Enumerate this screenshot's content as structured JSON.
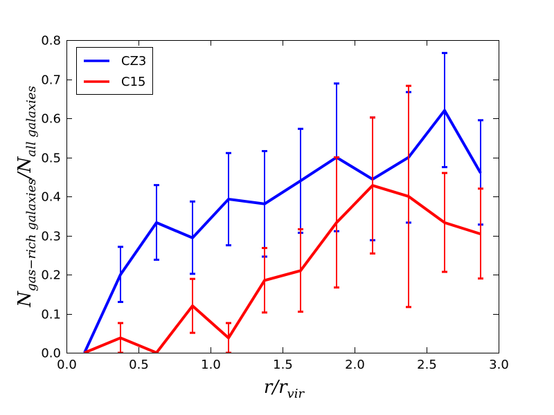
{
  "chart_data": {
    "type": "line",
    "title": "",
    "xlabel": {
      "main": "r/r",
      "sub": "vir"
    },
    "ylabel": {
      "n1": "N",
      "sub1": "gas−rich galaxies",
      "sep": "/",
      "n2": "N",
      "sub2": "all galaxies"
    },
    "xlim": [
      0.0,
      3.0
    ],
    "ylim": [
      0.0,
      0.8
    ],
    "xticks": [
      "0.0",
      "0.5",
      "1.0",
      "1.5",
      "2.0",
      "2.5",
      "3.0"
    ],
    "yticks": [
      "0.0",
      "0.1",
      "0.2",
      "0.3",
      "0.4",
      "0.5",
      "0.6",
      "0.7",
      "0.8"
    ],
    "legend_position": "top-left",
    "series": [
      {
        "name": "CZ3",
        "color": "#0000ff",
        "x": [
          0.125,
          0.375,
          0.625,
          0.875,
          1.125,
          1.375,
          1.625,
          1.875,
          2.125,
          2.375,
          2.625,
          2.875
        ],
        "y": [
          0.0,
          0.2,
          0.333,
          0.294,
          0.393,
          0.381,
          0.44,
          0.5,
          0.444,
          0.5,
          0.62,
          0.46
        ],
        "err_low": [
          null,
          0.13,
          0.238,
          0.202,
          0.275,
          0.246,
          0.307,
          0.311,
          0.288,
          0.333,
          0.475,
          0.328
        ],
        "err_high": [
          null,
          0.271,
          0.429,
          0.387,
          0.511,
          0.516,
          0.573,
          0.689,
          0.602,
          0.667,
          0.767,
          0.595
        ]
      },
      {
        "name": "C15",
        "color": "#ff0000",
        "x": [
          0.125,
          0.375,
          0.625,
          0.875,
          1.125,
          1.375,
          1.625,
          1.875,
          2.125,
          2.375,
          2.625,
          2.875
        ],
        "y": [
          0.0,
          0.038,
          0.0,
          0.12,
          0.038,
          0.185,
          0.21,
          0.333,
          0.428,
          0.4,
          0.333,
          0.304
        ],
        "err_low": [
          null,
          0.0,
          null,
          0.051,
          0.0,
          0.103,
          0.105,
          0.167,
          0.254,
          0.117,
          0.207,
          0.19
        ],
        "err_high": [
          null,
          0.076,
          null,
          0.189,
          0.076,
          0.268,
          0.316,
          0.5,
          0.602,
          0.683,
          0.46,
          0.42
        ]
      }
    ]
  }
}
